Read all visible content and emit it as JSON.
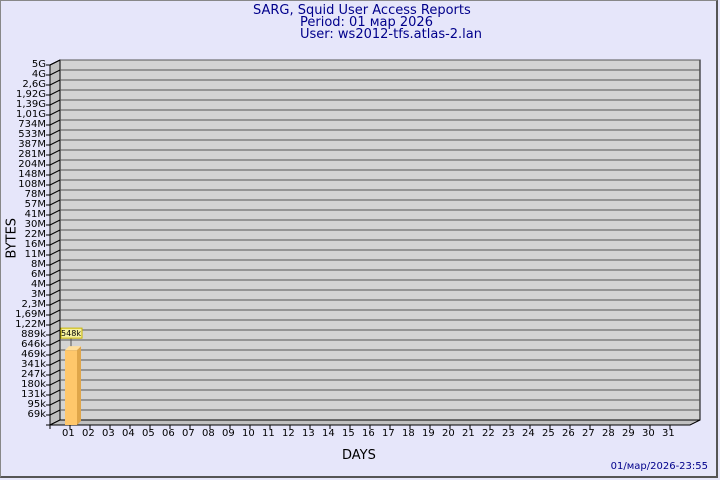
{
  "header": {
    "title": "SARG, Squid User Access Reports",
    "period": "Period: 01 мар 2026",
    "user": "User: ws2012-tfs.atlas-2.lan"
  },
  "footer": {
    "timestamp": "01/мар/2026-23:55"
  },
  "colors": {
    "background": "#e6e6fa",
    "title": "#00008b",
    "wall": "#d3d3d3",
    "bar": "#ffc76b",
    "bar_side": "#e0a64a",
    "label_box": "#f5f0a0"
  },
  "chart_data": {
    "type": "bar",
    "xlabel": "DAYS",
    "ylabel": "BYTES",
    "y_scale": "log-like (labelled ticks)",
    "y_ticks": [
      "5G",
      "4G",
      "2,6G",
      "1,92G",
      "1,39G",
      "1,01G",
      "734M",
      "533M",
      "387M",
      "281M",
      "204M",
      "148M",
      "108M",
      "78M",
      "57M",
      "41M",
      "30M",
      "22M",
      "16M",
      "11M",
      "8M",
      "6M",
      "4M",
      "3M",
      "2,3M",
      "1,69M",
      "1,22M",
      "889k",
      "646k",
      "469k",
      "341k",
      "247k",
      "180k",
      "131k",
      "95k",
      "69k"
    ],
    "categories": [
      "01",
      "02",
      "03",
      "04",
      "05",
      "06",
      "07",
      "08",
      "09",
      "10",
      "11",
      "12",
      "13",
      "14",
      "15",
      "16",
      "17",
      "18",
      "19",
      "20",
      "21",
      "22",
      "23",
      "24",
      "25",
      "26",
      "27",
      "28",
      "29",
      "30",
      "31"
    ],
    "values": [
      548000,
      null,
      null,
      null,
      null,
      null,
      null,
      null,
      null,
      null,
      null,
      null,
      null,
      null,
      null,
      null,
      null,
      null,
      null,
      null,
      null,
      null,
      null,
      null,
      null,
      null,
      null,
      null,
      null,
      null,
      null
    ],
    "data_labels": [
      "548k"
    ],
    "grid": true
  }
}
